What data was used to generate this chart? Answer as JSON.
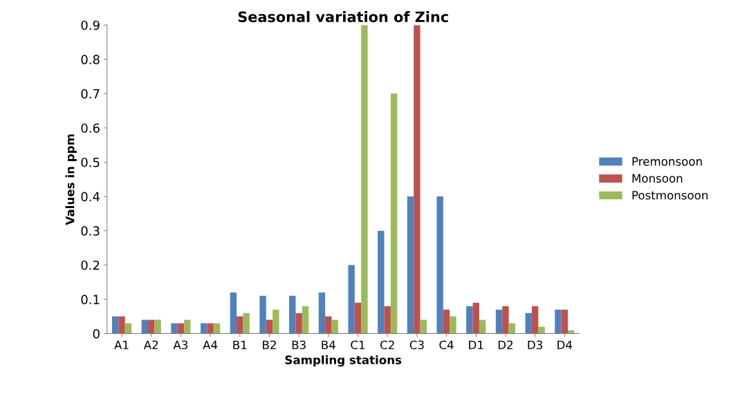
{
  "chart_data": {
    "type": "bar",
    "title": "Seasonal variation of Zinc",
    "xlabel": "Sampling stations",
    "ylabel": "Values in ppm",
    "categories": [
      "A1",
      "A2",
      "A3",
      "A4",
      "B1",
      "B2",
      "B3",
      "B4",
      "C1",
      "C2",
      "C3",
      "C4",
      "D1",
      "D2",
      "D3",
      "D4"
    ],
    "series": [
      {
        "name": "Premonsoon",
        "color": "#4f81bd",
        "values": [
          0.05,
          0.04,
          0.03,
          0.03,
          0.12,
          0.11,
          0.11,
          0.12,
          0.2,
          0.3,
          0.4,
          0.4,
          0.08,
          0.07,
          0.06,
          0.07
        ]
      },
      {
        "name": "Monsoon",
        "color": "#c0504d",
        "values": [
          0.05,
          0.04,
          0.03,
          0.03,
          0.05,
          0.04,
          0.06,
          0.05,
          0.09,
          0.08,
          0.9,
          0.07,
          0.09,
          0.08,
          0.08,
          0.07
        ]
      },
      {
        "name": "Postmonsoon",
        "color": "#9bbb59",
        "values": [
          0.03,
          0.04,
          0.04,
          0.03,
          0.06,
          0.07,
          0.08,
          0.04,
          0.9,
          0.7,
          0.04,
          0.05,
          0.04,
          0.03,
          0.02,
          0.01
        ]
      }
    ],
    "ylim": [
      0,
      0.9
    ],
    "yticks": [
      {
        "value": 0,
        "label": "0"
      },
      0.1,
      0.2,
      0.3,
      0.4,
      0.5,
      0.6,
      0.7,
      0.8,
      0.9
    ],
    "grid": false,
    "legend": "right"
  }
}
